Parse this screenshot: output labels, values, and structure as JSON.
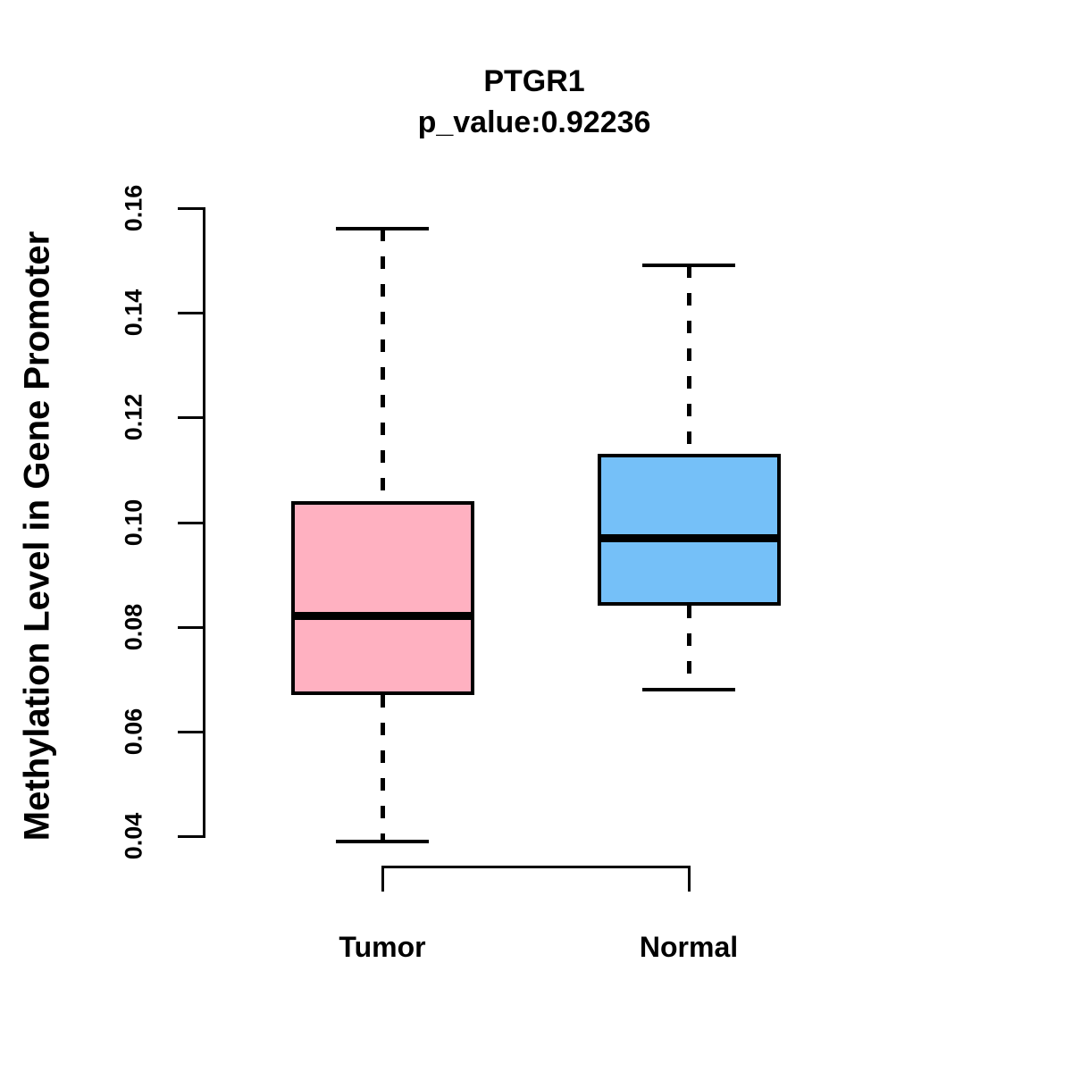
{
  "chart_data": {
    "type": "boxplot",
    "title": "PTGR1",
    "subtitle": "p_value:0.92236",
    "ylabel": "Methylation Level in Gene Promoter",
    "xlabel": "",
    "ylim": [
      0.04,
      0.16
    ],
    "yticks": [
      {
        "value": 0.04,
        "label": "0.04"
      },
      {
        "value": 0.06,
        "label": "0.06"
      },
      {
        "value": 0.08,
        "label": "0.08"
      },
      {
        "value": 0.1,
        "label": "0.10"
      },
      {
        "value": 0.12,
        "label": "0.12"
      },
      {
        "value": 0.14,
        "label": "0.14"
      },
      {
        "value": 0.16,
        "label": "0.16"
      }
    ],
    "categories": [
      "Tumor",
      "Normal"
    ],
    "series": [
      {
        "name": "Tumor",
        "fill_color": "#FFB1C1",
        "whisker_low": 0.039,
        "q1": 0.067,
        "median": 0.082,
        "q3": 0.104,
        "whisker_high": 0.156
      },
      {
        "name": "Normal",
        "fill_color": "#75C0F8",
        "whisker_low": 0.068,
        "q1": 0.084,
        "median": 0.097,
        "q3": 0.113,
        "whisker_high": 0.149
      }
    ],
    "line_color": "#000000",
    "whisker_style": "dashed",
    "legend": null,
    "grid": false
  }
}
